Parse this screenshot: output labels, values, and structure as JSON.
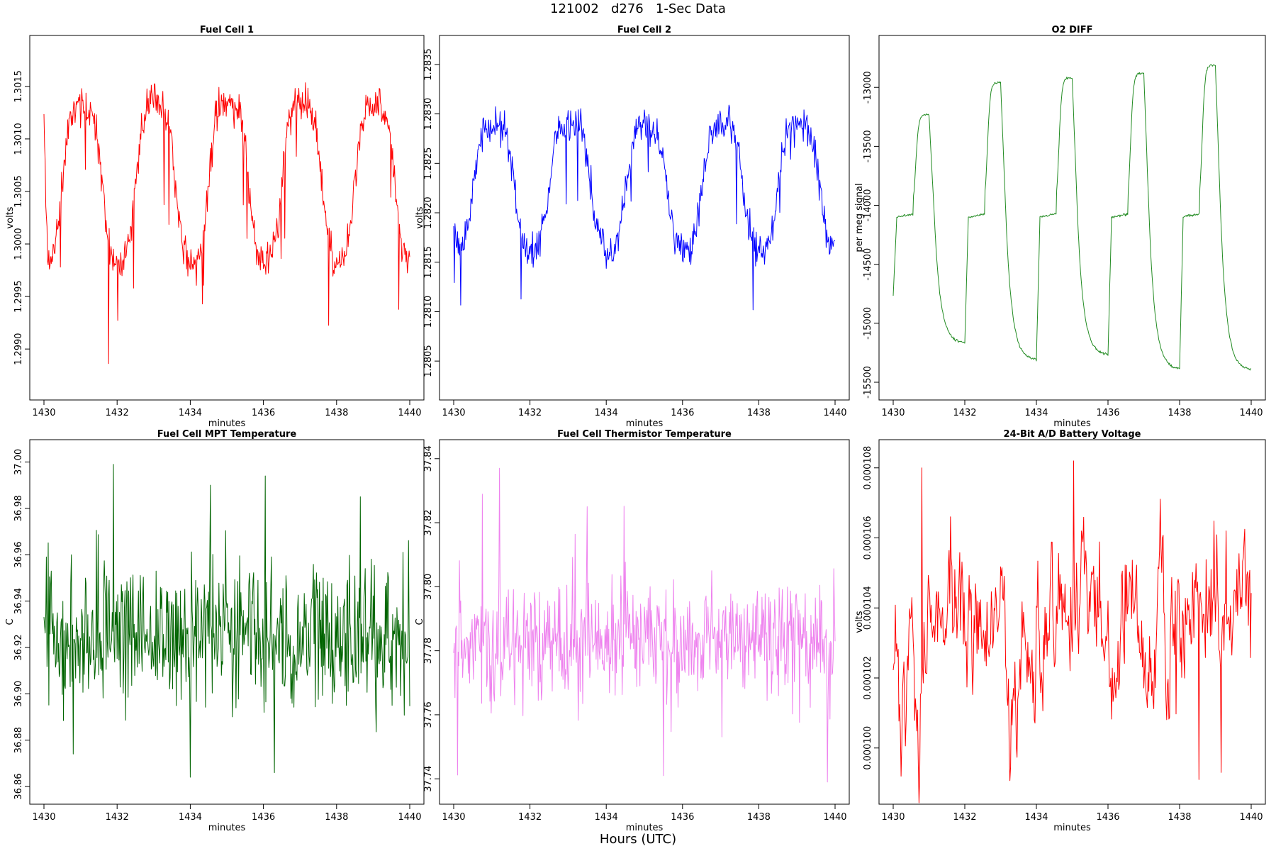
{
  "page": {
    "title": "121002   d276   1-Sec Data",
    "xlabel": "Hours (UTC)"
  },
  "chart_data": [
    {
      "type": "line",
      "title": "Fuel Cell 1",
      "xlabel": "minutes",
      "ylabel": "volts",
      "color": "#ff0000",
      "xlim": [
        1430,
        1440
      ],
      "ylim": [
        1.29865,
        1.30185
      ],
      "xticks": [
        1430,
        1432,
        1434,
        1436,
        1438,
        1440
      ],
      "yticks": [
        "1.2990",
        "1.2995",
        "1.3000",
        "1.3005",
        "1.3010",
        "1.3015"
      ],
      "signal": {
        "kind": "cycle",
        "start": 1.3012,
        "high": 1.30135,
        "low": 1.2998,
        "sharp": 10,
        "noise": 0.00014,
        "spikes": -0.0008,
        "period": 2,
        "seed": 11,
        "n": 600
      }
    },
    {
      "type": "line",
      "title": "Fuel Cell 2",
      "xlabel": "minutes",
      "ylabel": "volts",
      "color": "#0000ff",
      "xlim": [
        1430,
        1440
      ],
      "ylim": [
        1.28025,
        1.28365
      ],
      "xticks": [
        1430,
        1432,
        1434,
        1436,
        1438,
        1440
      ],
      "yticks": [
        "1.2805",
        "1.2810",
        "1.2815",
        "1.2820",
        "1.2825",
        "1.2830",
        "1.2835"
      ],
      "signal": {
        "kind": "cycle",
        "start": 1.282,
        "high": 1.2829,
        "low": 1.2816,
        "sharp": 10,
        "noise": 0.00014,
        "spikes": -0.0007,
        "period": 2,
        "seed": 23,
        "n": 600
      }
    },
    {
      "type": "line",
      "title": "O2 DIFF",
      "xlabel": "minutes",
      "ylabel": "per meg signal",
      "color": "#228B22",
      "xlim": [
        1430,
        1440
      ],
      "ylim": [
        -15530,
        -12680
      ],
      "xticks": [
        1430,
        1432,
        1434,
        1436,
        1438,
        1440
      ],
      "yticks": [
        "-15500",
        "-15000",
        "-14500",
        "-14000",
        "-13500",
        "-13000"
      ],
      "signal": {
        "kind": "o2",
        "start": -14770,
        "mid": -14100,
        "highs": [
          -13230,
          -12960,
          -12920,
          -12880,
          -12810
        ],
        "lows": [
          -15170,
          -15310,
          -15270,
          -15390,
          -15400
        ],
        "period": 2,
        "seed": 5,
        "n": 600
      }
    },
    {
      "type": "line",
      "title": "Fuel Cell MPT Temperature",
      "xlabel": "minutes",
      "ylabel": "C",
      "color": "#006400",
      "xlim": [
        1430,
        1440
      ],
      "ylim": [
        36.8585,
        37.0035
      ],
      "xticks": [
        1430,
        1432,
        1434,
        1436,
        1438,
        1440
      ],
      "yticks": [
        "36.86",
        "36.88",
        "36.90",
        "36.92",
        "36.94",
        "36.96",
        "36.98",
        "37.00"
      ],
      "signal": {
        "kind": "noise",
        "mean": 36.925,
        "amp": 0.022,
        "spikes": 0.04,
        "seed": 31,
        "n": 600,
        "peaks": [
          [
            1431.9,
            36.999
          ],
          [
            1434.0,
            36.864
          ],
          [
            1434.55,
            36.99
          ],
          [
            1436.05,
            36.994
          ],
          [
            1436.3,
            36.866
          ],
          [
            1438.65,
            36.985
          ]
        ]
      }
    },
    {
      "type": "line",
      "title": "Fuel Cell Thermistor Temperature",
      "xlabel": "minutes",
      "ylabel": "C",
      "color": "#ee82ee",
      "xlim": [
        1430,
        1440
      ],
      "ylim": [
        37.7365,
        37.8415
      ],
      "xticks": [
        1430,
        1432,
        1434,
        1436,
        1438,
        1440
      ],
      "yticks": [
        "37.74",
        "37.76",
        "37.78",
        "37.80",
        "37.82",
        "37.84"
      ],
      "signal": {
        "kind": "noise",
        "mean": 37.783,
        "amp": 0.012,
        "spikes": 0.03,
        "seed": 47,
        "n": 600,
        "peaks": [
          [
            1431.2,
            37.837
          ],
          [
            1433.5,
            37.825
          ],
          [
            1435.5,
            37.741
          ],
          [
            1439.8,
            37.739
          ]
        ]
      }
    },
    {
      "type": "line",
      "title": "24-Bit A/D Battery Voltage",
      "xlabel": "minutes",
      "ylabel": "volts",
      "color": "#ff0000",
      "xlim": [
        1430,
        1440
      ],
      "ylim": [
        9.88e-05,
        0.0001084
      ],
      "xticks": [
        1430,
        1432,
        1434,
        1436,
        1438,
        1440
      ],
      "yticks": [
        "0.000100",
        "0.000102",
        "0.000104",
        "0.000106",
        "0.000108"
      ],
      "signal": {
        "kind": "walk",
        "mean": 0.0001035,
        "amp": 1.8e-06,
        "seed": 59,
        "n": 500,
        "peaks": [
          [
            1430.8,
            0.000108
          ],
          [
            1435.05,
            0.0001082
          ],
          [
            1438.55,
            9.91e-05
          ],
          [
            1439.15,
            9.93e-05
          ],
          [
            1439.3,
            0.0001062
          ]
        ]
      }
    }
  ]
}
